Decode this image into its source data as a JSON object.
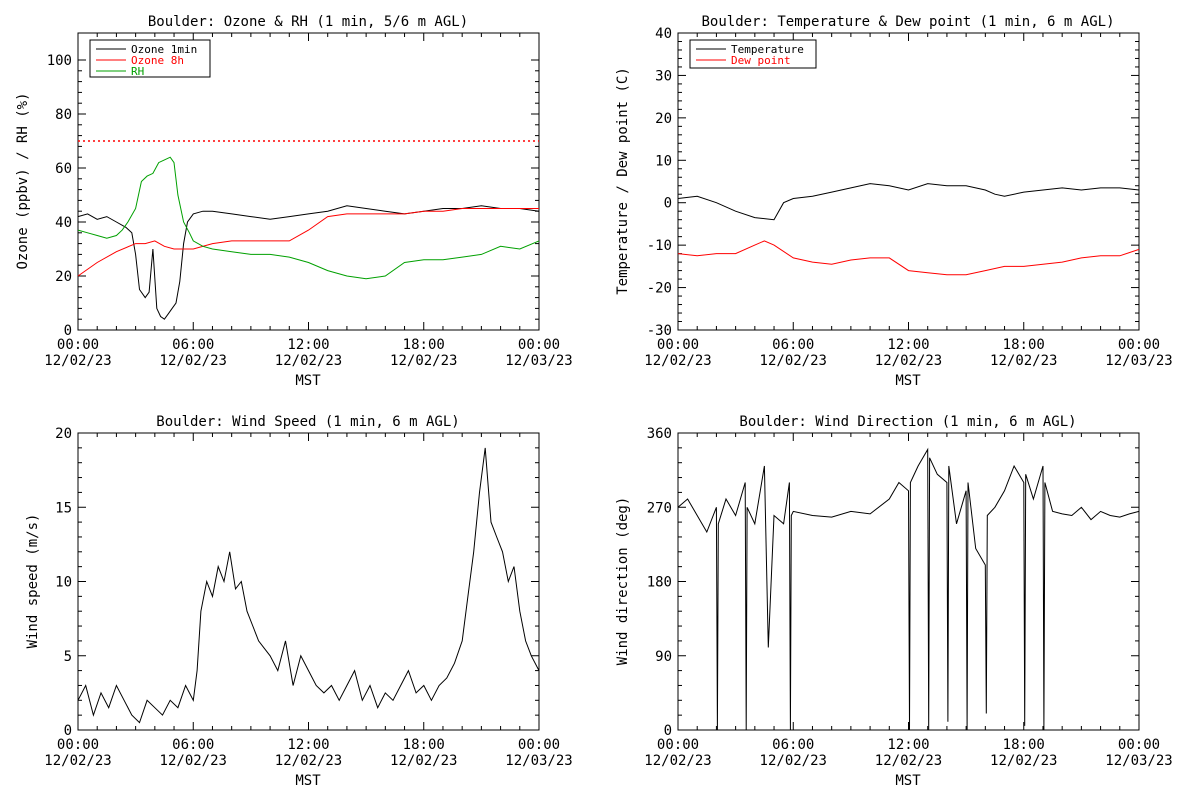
{
  "chart_data": [
    {
      "type": "line",
      "title": "Boulder: Ozone & RH (1 min, 5/6 m AGL)",
      "xlabel": "MST",
      "ylabel": "Ozone (ppbv) / RH (%)",
      "x_hours_range": [
        0,
        24
      ],
      "x_ticks": [
        {
          "time": "00:00",
          "date": "12/02/23"
        },
        {
          "time": "06:00",
          "date": "12/02/23"
        },
        {
          "time": "12:00",
          "date": "12/02/23"
        },
        {
          "time": "18:00",
          "date": "12/02/23"
        },
        {
          "time": "00:00",
          "date": "12/03/23"
        }
      ],
      "ylim": [
        0,
        110
      ],
      "yticks": [
        0,
        20,
        40,
        60,
        80,
        100
      ],
      "legend_position": "top-left",
      "reference_line": {
        "value": 70,
        "color": "#ff0000",
        "style": "dotted"
      },
      "series": [
        {
          "name": "Ozone 1min",
          "color": "#000000",
          "x": [
            0,
            0.5,
            1,
            1.5,
            2,
            2.5,
            2.8,
            3,
            3.2,
            3.5,
            3.7,
            3.9,
            4.1,
            4.3,
            4.5,
            4.7,
            4.9,
            5.1,
            5.3,
            5.5,
            5.7,
            6,
            6.5,
            7,
            8,
            9,
            10,
            11,
            12,
            13,
            14,
            15,
            16,
            17,
            18,
            19,
            20,
            21,
            22,
            23,
            24
          ],
          "y": [
            42,
            43,
            41,
            42,
            40,
            38,
            36,
            28,
            15,
            12,
            14,
            30,
            8,
            5,
            4,
            6,
            8,
            10,
            18,
            32,
            40,
            43,
            44,
            44,
            43,
            42,
            41,
            42,
            43,
            44,
            46,
            45,
            44,
            43,
            44,
            45,
            45,
            46,
            45,
            45,
            44
          ]
        },
        {
          "name": "Ozone 8h",
          "color": "#ff0000",
          "x": [
            0,
            1,
            2,
            3,
            3.5,
            4,
            4.5,
            5,
            6,
            7,
            8,
            9,
            10,
            11,
            12,
            13,
            14,
            15,
            16,
            17,
            18,
            19,
            20,
            21,
            22,
            23,
            24
          ],
          "y": [
            20,
            25,
            29,
            32,
            32,
            33,
            31,
            30,
            30,
            32,
            33,
            33,
            33,
            33,
            37,
            42,
            43,
            43,
            43,
            43,
            44,
            44,
            45,
            45,
            45,
            45,
            45
          ]
        },
        {
          "name": "RH",
          "color": "#00a000",
          "x": [
            0,
            0.5,
            1,
            1.5,
            2,
            2.3,
            2.6,
            3,
            3.3,
            3.6,
            3.9,
            4.2,
            4.5,
            4.8,
            5,
            5.2,
            5.5,
            5.8,
            6,
            6.5,
            7,
            8,
            9,
            10,
            11,
            12,
            13,
            14,
            15,
            16,
            17,
            18,
            19,
            20,
            21,
            22,
            23,
            24
          ],
          "y": [
            37,
            36,
            35,
            34,
            35,
            37,
            40,
            45,
            55,
            57,
            58,
            62,
            63,
            64,
            62,
            50,
            40,
            36,
            33,
            31,
            30,
            29,
            28,
            28,
            27,
            25,
            22,
            20,
            19,
            20,
            25,
            26,
            26,
            27,
            28,
            31,
            30,
            33
          ]
        }
      ]
    },
    {
      "type": "line",
      "title": "Boulder: Temperature & Dew point (1 min, 6 m AGL)",
      "xlabel": "MST",
      "ylabel": "Temperature / Dew point (C)",
      "x_hours_range": [
        0,
        24
      ],
      "x_ticks": [
        {
          "time": "00:00",
          "date": "12/02/23"
        },
        {
          "time": "06:00",
          "date": "12/02/23"
        },
        {
          "time": "12:00",
          "date": "12/02/23"
        },
        {
          "time": "18:00",
          "date": "12/02/23"
        },
        {
          "time": "00:00",
          "date": "12/03/23"
        }
      ],
      "ylim": [
        -30,
        40
      ],
      "yticks": [
        -30,
        -20,
        -10,
        0,
        10,
        20,
        30,
        40
      ],
      "legend_position": "top-left",
      "series": [
        {
          "name": "Temperature",
          "color": "#000000",
          "x": [
            0,
            1,
            2,
            3,
            4,
            5,
            5.5,
            6,
            7,
            8,
            9,
            10,
            11,
            12,
            13,
            14,
            15,
            16,
            16.5,
            17,
            18,
            19,
            20,
            21,
            22,
            23,
            24
          ],
          "y": [
            1,
            1.5,
            0,
            -2,
            -3.5,
            -4,
            0,
            1,
            1.5,
            2.5,
            3.5,
            4.5,
            4,
            3,
            4.5,
            4,
            4,
            3,
            2,
            1.5,
            2.5,
            3,
            3.5,
            3,
            3.5,
            3.5,
            3
          ]
        },
        {
          "name": "Dew point",
          "color": "#ff0000",
          "x": [
            0,
            1,
            2,
            3,
            4,
            4.5,
            5,
            6,
            7,
            8,
            9,
            10,
            11,
            12,
            13,
            14,
            15,
            16,
            17,
            18,
            19,
            20,
            21,
            22,
            23,
            24
          ],
          "y": [
            -12,
            -12.5,
            -12,
            -12,
            -10,
            -9,
            -10,
            -13,
            -14,
            -14.5,
            -13.5,
            -13,
            -13,
            -16,
            -16.5,
            -17,
            -17,
            -16,
            -15,
            -15,
            -14.5,
            -14,
            -13,
            -12.5,
            -12.5,
            -11
          ]
        }
      ]
    },
    {
      "type": "line",
      "title": "Boulder: Wind Speed (1 min, 6 m AGL)",
      "xlabel": "MST",
      "ylabel": "Wind speed (m/s)",
      "x_hours_range": [
        0,
        24
      ],
      "x_ticks": [
        {
          "time": "00:00",
          "date": "12/02/23"
        },
        {
          "time": "06:00",
          "date": "12/02/23"
        },
        {
          "time": "12:00",
          "date": "12/02/23"
        },
        {
          "time": "18:00",
          "date": "12/02/23"
        },
        {
          "time": "00:00",
          "date": "12/03/23"
        }
      ],
      "ylim": [
        0,
        20
      ],
      "yticks": [
        0,
        5,
        10,
        15,
        20
      ],
      "series": [
        {
          "name": "",
          "color": "#000000",
          "x": [
            0,
            0.4,
            0.8,
            1.2,
            1.6,
            2,
            2.4,
            2.8,
            3.2,
            3.6,
            4,
            4.4,
            4.8,
            5.2,
            5.6,
            6,
            6.2,
            6.4,
            6.7,
            7,
            7.3,
            7.6,
            7.9,
            8.2,
            8.5,
            8.8,
            9.1,
            9.4,
            9.7,
            10,
            10.4,
            10.8,
            11.2,
            11.6,
            12,
            12.4,
            12.8,
            13.2,
            13.6,
            14,
            14.4,
            14.8,
            15.2,
            15.6,
            16,
            16.4,
            16.8,
            17.2,
            17.6,
            18,
            18.4,
            18.8,
            19.2,
            19.6,
            20,
            20.3,
            20.6,
            20.9,
            21.2,
            21.5,
            21.8,
            22.1,
            22.4,
            22.7,
            23,
            23.3,
            23.6,
            24
          ],
          "y": [
            2,
            3,
            1,
            2.5,
            1.5,
            3,
            2,
            1,
            0.5,
            2,
            1.5,
            1,
            2,
            1.5,
            3,
            2,
            4,
            8,
            10,
            9,
            11,
            10,
            12,
            9.5,
            10,
            8,
            7,
            6,
            5.5,
            5,
            4,
            6,
            3,
            5,
            4,
            3,
            2.5,
            3,
            2,
            3,
            4,
            2,
            3,
            1.5,
            2.5,
            2,
            3,
            4,
            2.5,
            3,
            2,
            3,
            3.5,
            4.5,
            6,
            9,
            12,
            16,
            19,
            14,
            13,
            12,
            10,
            11,
            8,
            6,
            5,
            4
          ]
        }
      ]
    },
    {
      "type": "line",
      "title": "Boulder: Wind Direction (1 min, 6 m AGL)",
      "xlabel": "MST",
      "ylabel": "Wind direction (deg)",
      "x_hours_range": [
        0,
        24
      ],
      "x_ticks": [
        {
          "time": "00:00",
          "date": "12/02/23"
        },
        {
          "time": "06:00",
          "date": "12/02/23"
        },
        {
          "time": "12:00",
          "date": "12/02/23"
        },
        {
          "time": "18:00",
          "date": "12/02/23"
        },
        {
          "time": "00:00",
          "date": "12/03/23"
        }
      ],
      "ylim": [
        0,
        360
      ],
      "yticks": [
        0,
        90,
        180,
        270,
        360
      ],
      "series": [
        {
          "name": "",
          "color": "#000000",
          "x": [
            0,
            0.5,
            1,
            1.5,
            2,
            2.05,
            2.1,
            2.5,
            3,
            3.5,
            3.55,
            3.6,
            4,
            4.5,
            4.7,
            5,
            5.5,
            5.8,
            5.85,
            5.9,
            6,
            7,
            8,
            9,
            10,
            11,
            11.5,
            12,
            12.05,
            12.1,
            12.5,
            13,
            13.05,
            13.1,
            13.5,
            14,
            14.05,
            14.1,
            14.5,
            15,
            15.05,
            15.1,
            15.5,
            16,
            16.05,
            16.1,
            16.5,
            17,
            17.5,
            18,
            18.05,
            18.1,
            18.5,
            19,
            19.05,
            19.1,
            19.5,
            20,
            20.5,
            21,
            21.5,
            22,
            22.5,
            23,
            23.5,
            24
          ],
          "y": [
            270,
            280,
            260,
            240,
            270,
            0,
            250,
            280,
            260,
            300,
            0,
            270,
            250,
            320,
            100,
            260,
            250,
            300,
            0,
            260,
            265,
            260,
            258,
            265,
            262,
            280,
            300,
            290,
            0,
            300,
            320,
            340,
            0,
            330,
            310,
            300,
            10,
            320,
            250,
            290,
            0,
            300,
            220,
            200,
            20,
            260,
            270,
            290,
            320,
            300,
            5,
            310,
            280,
            320,
            0,
            300,
            265,
            262,
            260,
            270,
            255,
            265,
            260,
            258,
            262,
            265
          ]
        }
      ]
    }
  ]
}
